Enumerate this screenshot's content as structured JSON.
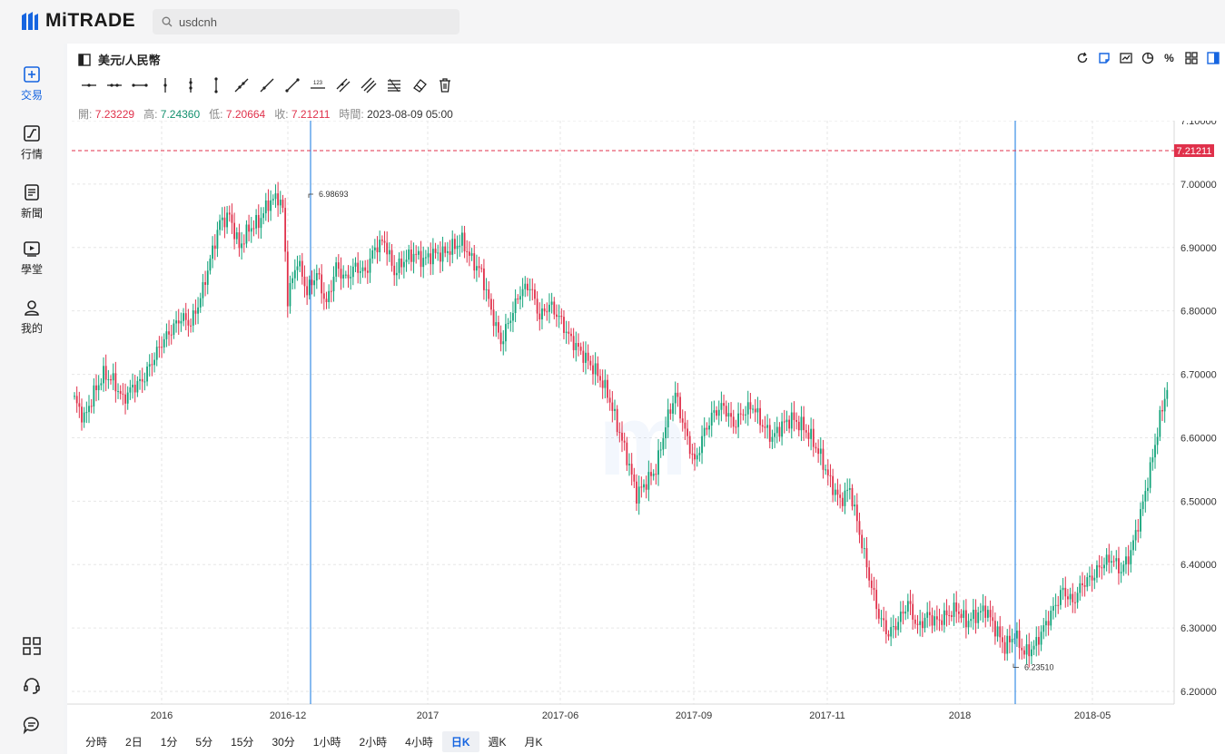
{
  "app": {
    "logo_text": "MiTRADE"
  },
  "search": {
    "value": "usdcnh",
    "icon": "search-icon"
  },
  "sidebar": {
    "items": [
      {
        "label": "交易",
        "icon": "trade-plus-icon",
        "active": true
      },
      {
        "label": "行情",
        "icon": "market-chart-icon",
        "active": false
      },
      {
        "label": "新聞",
        "icon": "news-icon",
        "active": false
      },
      {
        "label": "學堂",
        "icon": "video-play-icon",
        "active": false
      },
      {
        "label": "我的",
        "icon": "user-icon",
        "active": false
      }
    ],
    "bottom_tools": [
      "qr-scan-icon",
      "customer-service-icon",
      "chat-bubble-icon"
    ]
  },
  "header": {
    "symbol": "美元/人民幣",
    "icons": [
      "refresh-icon",
      "draw-icon",
      "indicator-icon",
      "pie-icon",
      "percent-icon",
      "grid-icon",
      "panel-toggle-icon"
    ]
  },
  "ohlc": {
    "open_label": "開:",
    "open": "7.23229",
    "high_label": "高:",
    "high": "7.24360",
    "low_label": "低:",
    "low": "7.20664",
    "close_label": "收:",
    "close": "7.21211",
    "time_label": "時間:",
    "time": "2023-08-09 05:00"
  },
  "timeframes": [
    {
      "label": "分時",
      "active": false
    },
    {
      "label": "2日",
      "active": false
    },
    {
      "label": "1分",
      "active": false
    },
    {
      "label": "5分",
      "active": false
    },
    {
      "label": "15分",
      "active": false
    },
    {
      "label": "30分",
      "active": false
    },
    {
      "label": "1小時",
      "active": false
    },
    {
      "label": "2小時",
      "active": false
    },
    {
      "label": "4小時",
      "active": false
    },
    {
      "label": "日K",
      "active": true
    },
    {
      "label": "週K",
      "active": false
    },
    {
      "label": "月K",
      "active": false
    }
  ],
  "colors": {
    "up": "#12a37a",
    "down": "#e0314b",
    "accent": "#1665e0",
    "marker": "#3a8ee6"
  },
  "chart_data": {
    "type": "candlestick",
    "y_ticks": [
      "7.10000",
      "7.00000",
      "6.90000",
      "6.80000",
      "6.70000",
      "6.60000",
      "6.50000",
      "6.40000",
      "6.30000",
      "6.20000"
    ],
    "ylim": [
      6.18,
      7.1
    ],
    "x_ticks": [
      "2016",
      "2016-12",
      "2017",
      "2017-06",
      "2017-09",
      "2017-11",
      "2018",
      "2018-05"
    ],
    "current_price": "7.21211",
    "high_label": "6.98693",
    "low_label": "6.23510",
    "grid": true,
    "anchors": [
      [
        0,
        6.66
      ],
      [
        4,
        6.63
      ],
      [
        8,
        6.67
      ],
      [
        12,
        6.7
      ],
      [
        16,
        6.69
      ],
      [
        20,
        6.66
      ],
      [
        24,
        6.68
      ],
      [
        28,
        6.69
      ],
      [
        32,
        6.72
      ],
      [
        36,
        6.75
      ],
      [
        40,
        6.77
      ],
      [
        44,
        6.79
      ],
      [
        48,
        6.78
      ],
      [
        52,
        6.82
      ],
      [
        56,
        6.88
      ],
      [
        60,
        6.94
      ],
      [
        64,
        6.95
      ],
      [
        68,
        6.9
      ],
      [
        72,
        6.93
      ],
      [
        76,
        6.94
      ],
      [
        80,
        6.97
      ],
      [
        84,
        6.98
      ],
      [
        86,
        6.96
      ],
      [
        88,
        6.82
      ],
      [
        92,
        6.88
      ],
      [
        96,
        6.83
      ],
      [
        100,
        6.86
      ],
      [
        104,
        6.81
      ],
      [
        108,
        6.87
      ],
      [
        112,
        6.85
      ],
      [
        116,
        6.87
      ],
      [
        120,
        6.86
      ],
      [
        124,
        6.9
      ],
      [
        128,
        6.91
      ],
      [
        132,
        6.86
      ],
      [
        136,
        6.88
      ],
      [
        140,
        6.89
      ],
      [
        144,
        6.88
      ],
      [
        148,
        6.89
      ],
      [
        152,
        6.89
      ],
      [
        156,
        6.9
      ],
      [
        160,
        6.91
      ],
      [
        164,
        6.88
      ],
      [
        168,
        6.86
      ],
      [
        172,
        6.8
      ],
      [
        176,
        6.75
      ],
      [
        180,
        6.79
      ],
      [
        184,
        6.83
      ],
      [
        188,
        6.84
      ],
      [
        192,
        6.79
      ],
      [
        196,
        6.81
      ],
      [
        200,
        6.79
      ],
      [
        204,
        6.76
      ],
      [
        208,
        6.74
      ],
      [
        212,
        6.72
      ],
      [
        216,
        6.7
      ],
      [
        220,
        6.67
      ],
      [
        224,
        6.62
      ],
      [
        228,
        6.57
      ],
      [
        232,
        6.51
      ],
      [
        236,
        6.53
      ],
      [
        240,
        6.55
      ],
      [
        244,
        6.62
      ],
      [
        248,
        6.67
      ],
      [
        252,
        6.61
      ],
      [
        256,
        6.56
      ],
      [
        260,
        6.61
      ],
      [
        264,
        6.64
      ],
      [
        268,
        6.65
      ],
      [
        272,
        6.62
      ],
      [
        276,
        6.64
      ],
      [
        280,
        6.65
      ],
      [
        284,
        6.62
      ],
      [
        288,
        6.6
      ],
      [
        292,
        6.62
      ],
      [
        296,
        6.63
      ],
      [
        300,
        6.62
      ],
      [
        304,
        6.6
      ],
      [
        308,
        6.57
      ],
      [
        312,
        6.53
      ],
      [
        316,
        6.5
      ],
      [
        320,
        6.52
      ],
      [
        324,
        6.45
      ],
      [
        328,
        6.38
      ],
      [
        332,
        6.32
      ],
      [
        336,
        6.29
      ],
      [
        340,
        6.31
      ],
      [
        344,
        6.34
      ],
      [
        348,
        6.3
      ],
      [
        352,
        6.32
      ],
      [
        356,
        6.31
      ],
      [
        360,
        6.32
      ],
      [
        364,
        6.33
      ],
      [
        368,
        6.31
      ],
      [
        372,
        6.32
      ],
      [
        376,
        6.33
      ],
      [
        380,
        6.3
      ],
      [
        384,
        6.27
      ],
      [
        388,
        6.29
      ],
      [
        392,
        6.26
      ],
      [
        396,
        6.27
      ],
      [
        400,
        6.3
      ],
      [
        404,
        6.33
      ],
      [
        408,
        6.36
      ],
      [
        412,
        6.34
      ],
      [
        416,
        6.37
      ],
      [
        420,
        6.38
      ],
      [
        424,
        6.4
      ],
      [
        428,
        6.41
      ],
      [
        432,
        6.39
      ],
      [
        436,
        6.42
      ],
      [
        440,
        6.48
      ],
      [
        444,
        6.55
      ],
      [
        448,
        6.63
      ],
      [
        451,
        6.68
      ]
    ]
  }
}
